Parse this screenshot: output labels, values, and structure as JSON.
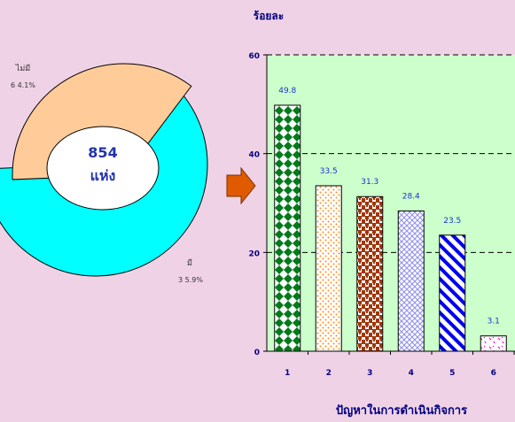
{
  "chart_data": [
    {
      "type": "pie",
      "style": "exploded-donut",
      "slices": [
        {
          "label": "ไม่มี",
          "value": 64.1,
          "value_label": "6 4.1%",
          "color": "#00ffff"
        },
        {
          "label": "มี",
          "value": 35.9,
          "value_label": "3 5.9%",
          "color": "#ffcc99"
        }
      ],
      "center_value": "854",
      "center_unit": "แห่ง"
    },
    {
      "type": "bar",
      "ylabel": "ร้อยละ",
      "xlabel": "ปัญหาในการดำเนินกิจการ",
      "categories": [
        "1",
        "2",
        "3",
        "4",
        "5",
        "6"
      ],
      "values": [
        49.8,
        33.5,
        31.3,
        28.4,
        23.5,
        3.1
      ],
      "value_labels": [
        "49.8",
        "33.5",
        "31.3",
        "28.4",
        "23.5",
        "3.1"
      ],
      "yticks": [
        "0",
        "20",
        "40",
        "60"
      ],
      "ylim": [
        0,
        60
      ],
      "grid": "dashed",
      "plot_background": "#ccffcc",
      "label_color": "#000080"
    }
  ]
}
